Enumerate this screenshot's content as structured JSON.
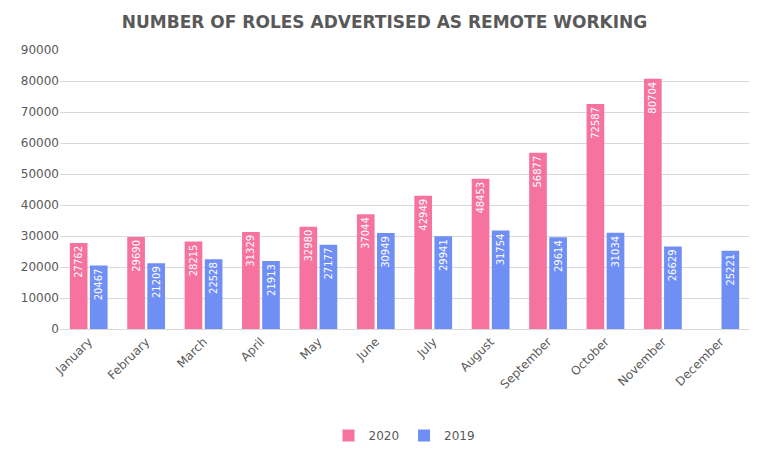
{
  "chart_data": {
    "type": "bar",
    "title": "NUMBER OF ROLES ADVERTISED AS REMOTE WORKING",
    "categories": [
      "January",
      "February",
      "March",
      "April",
      "May",
      "June",
      "July",
      "August",
      "September",
      "October",
      "November",
      "December"
    ],
    "series": [
      {
        "name": "2020",
        "color": "#f7739f",
        "values": [
          27762,
          29690,
          28215,
          31329,
          32980,
          37044,
          42949,
          48453,
          56877,
          72587,
          80704,
          null
        ]
      },
      {
        "name": "2019",
        "color": "#6f8ff5",
        "values": [
          20467,
          21209,
          22528,
          21913,
          27177,
          30949,
          29941,
          31754,
          29614,
          31034,
          26629,
          25221
        ]
      }
    ],
    "ylim": [
      0,
      90000
    ],
    "yticks": [
      0,
      10000,
      20000,
      30000,
      40000,
      50000,
      60000,
      70000,
      80000,
      90000
    ],
    "grid": true,
    "legend": "bottom",
    "data_labels": true
  }
}
